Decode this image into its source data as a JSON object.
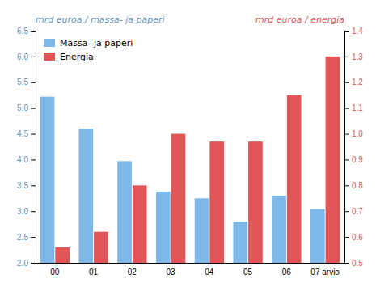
{
  "chart_data": {
    "type": "bar",
    "categories": [
      "00",
      "01",
      "02",
      "03",
      "04",
      "05",
      "06",
      "07 arvio"
    ],
    "series": [
      {
        "name": "Massa- ja paperi",
        "color": "#7DB8E8",
        "values": [
          5.22,
          4.6,
          3.97,
          3.38,
          3.25,
          2.8,
          3.3,
          3.04
        ]
      },
      {
        "name": "Energia",
        "color": "#E05555",
        "axis": "y2",
        "values": [
          0.56,
          0.62,
          0.8,
          1.0,
          0.97,
          0.97,
          1.15,
          1.3
        ]
      }
    ],
    "ylabel": "mrd euroa / massa- ja paperi",
    "y2label": "mrd euroa / energia",
    "ylim": [
      2.0,
      6.5
    ],
    "yticks": [
      {
        "value": 2.0,
        "label": "2.0"
      },
      2.5,
      {
        "value": 3.0,
        "label": "3.0"
      },
      3.5,
      {
        "value": 4.0,
        "label": "4.0"
      },
      4.5,
      {
        "value": 5.0,
        "label": "5.0"
      },
      5.5,
      {
        "value": 6.0,
        "label": "6.0"
      },
      6.5
    ],
    "y2lim": [
      0.5,
      1.4
    ],
    "y2ticks": [
      0.5,
      0.6,
      0.7,
      0.8,
      0.9,
      {
        "value": 1.0,
        "label": "1.0"
      },
      1.1,
      1.2,
      1.3,
      1.4
    ],
    "grid": false,
    "legend": "upper left"
  }
}
